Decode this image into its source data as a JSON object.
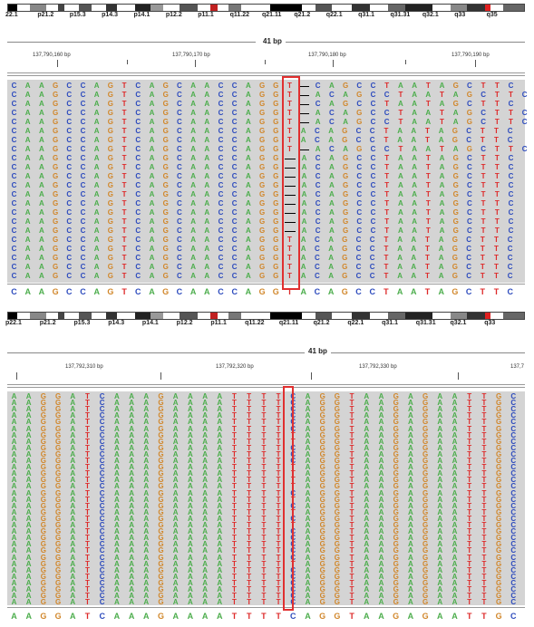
{
  "colors": {
    "A": "#4cad4c",
    "C": "#2d4bbd",
    "G": "#d1872b",
    "T": "#dd2a2a",
    "highlight": "#e03030",
    "read_bg": "#d4d4d4"
  },
  "panel1": {
    "ideogram_labels": [
      "22.1",
      "p21.2",
      "p15.3",
      "p14.3",
      "p14.1",
      "p12.2",
      "p11.1",
      "q11.22",
      "q21.11",
      "q21.2",
      "q22.1",
      "q31.1",
      "q31.31",
      "q32.1",
      "q33",
      "q35"
    ],
    "span": "41 bp",
    "coords": [
      "137,790,160 bp",
      "137,790,170 bp",
      "137,790,180 bp",
      "137,790,190 bp"
    ],
    "reference": "CAAGCCAGTCAGCAACCAGGTACAGCCTAATAGCTTC",
    "reads": [
      "CAAGCCAGTCAGCAACCAGGT-CAGCCTAATAGCTTC",
      "CAAGCCAGTCAGCAACCAGGT-ACAGCCTAATAGCTTC",
      "CAAGCCAGTCAGCAACCAGGT-CAGCCTAATAGCTTC",
      "CAAGCCAGTCAGCAACCAGGT-ACAGCCTAATAGCTTC",
      "CAAGCCAGTCAGCAACCAGGT-ACAGCCTAATAGCTTC",
      "CAAGCCAGTCAGCAACCAGGTACAGCCTAATAGCTTC",
      "CAAGCCAGTCAGCAACCAGGTACAGCCTAATAGCTTC",
      "CAAGCCAGTCAGCAACCAGGT-ACAGCCTAATAGCTTC",
      "CAAGCCAGTCAGCAACCAGG-ACAGCCTAATAGCTTC",
      "CAAGCCAGTCAGCAACCAGG-ACAGCCTAATAGCTTC",
      "CAAGCCAGTCAGCAACCAGG-ACAGCCTAATAGCTTC",
      "CAAGCCAGTCAGCAACCAGG-ACAGCCTAATAGCTTC",
      "CAAGCCAGTCAGCAACCAGG-ACAGCCTAATAGCTTC",
      "CAAGCCAGTCAGCAACCAGG-ACAGCCTAATAGCTTC",
      "CAAGCCAGTCAGCAACCAGG-ACAGCCTAATAGCTTC",
      "CAAGCCAGTCAGCAACCAGG-ACAGCCTAATAGCTTC",
      "CAAGCCAGTCAGCAACCAGG-ACAGCCTAATAGCTTC",
      "CAAGCCAGTCAGCAACCAGGTACAGCCTAATAGCTTC",
      "CAAGCCAGTCAGCAACCAGGTACAGCCTAATAGCTTC",
      "CAAGCCAGTCAGCAACCAGGTACAGCCTAATAGCTTC",
      "CAAGCCAGTCAGCAACCAGGTACAGCCTAATAGCTTC",
      "CAAGCCAGTCAGCAACCAGGTACAGCCTAATAGCTTC"
    ]
  },
  "panel2": {
    "ideogram_labels": [
      "p22.1",
      "p21.2",
      "p15.3",
      "p14.3",
      "p14.1",
      "p12.2",
      "p11.1",
      "q11.22",
      "q21.11",
      "q21.2",
      "q22.1",
      "q31.1",
      "q31.31",
      "q32.1",
      "q33"
    ],
    "span": "41 bp",
    "coords": [
      "137,792,310 bp",
      "137,792,320 bp",
      "137,792,330 bp",
      "137,7"
    ],
    "reference": "AAGGATCAAAGAAAATTTTCAGGTAAGAGAATTGC",
    "reads": [
      "AAGGATCAAAGAAAATTTTCAGGTAAGAGAATTGC",
      "AAGGATCAAAGAAAATTTTCAGGTAAGAGAATTGC",
      "AAGGATCAAAGAAAATTTTCAGGTAAGAGAATTGC",
      "AAGGATCAAAGAAAATTTTCAGGTAAGAGAATTGC",
      "AAGGATCAAAGAAAATTTTCAGGTAAGAGAATTGC",
      "AAGGATCAAAGAAAATTTTCAGGTAAGAGAATTGC",
      "AAGGATCAAAGAAAATTTTTAGGTAAGAGAATTGC",
      "AAGGATCAAAGAAAATTTTTAGGTAAGAGAATTGC",
      "AAGGATCAAAGAAAATTTTCAGGTAAGAGAATTGC",
      "AAGGATCAAAGAAAATTTTCAGGTAAGAGAATTGC",
      "AAGGATCAAAGAAAATTTTCAGGTAAGAGAATTGC",
      "AAGGATCAAAGAAAATTTTTAGGTAAGAGAATTGC",
      "AAGGATCAAAGAAAATTTTTAGGTAAGAGAATTGC",
      "AAGGATCAAAGAAAATTTTTAGGTAAGAGAATTGC",
      "AAGGATCAAAGAAAATTTTTAGGTAAGAGAATTGC",
      "AAGGATCAAAGAAAATTTTCAGGTAAGAGAATTGC",
      "AAGGATCAAAGAAAATTTTTAGGTAAGAGAATTGC",
      "AAGGATCAAAGAAAATTTTCAGGTAAGAGAATTGC",
      "AAGGATCAAAGAAAATTTTTAGGTAAGAGAATTGC",
      "AAGGATCAAAGAAAATTTTCAGGTAAGAGAATTGC",
      "AAGGATCAAAGAAAATTTTTAGGTAAGAGAATTGC",
      "AAGGATCAAAGAAAATTTTCAGGTAAGAGAATTGC",
      "AAGGATCAAAGAAAATTTTCAGGTAAGAGAATTGC",
      "AAGGATCAAAGAAAATTTTCAGGTAAGAGAATTGC",
      "AAGGATCAAAGAAAATTTTCAGGTAAGAGAATTGC",
      "AAGGATCAAAGAAAATTTTCAGGTAAGAGAATTGC",
      "AAGGATCAAAGAAAATTTTTAGGTAAGAGAATTGC",
      "AAGGATCAAAGAAAATTTTCAGGTAAGAGAATTGC",
      "AAGGATCAAAGAAAATTTTCAGGTAAGAGAATTGC",
      "AAGGATCAAAGAAAATTTTCAGGTAAGAGAATTGC",
      "AAGGATCAAAGAAAATTTTCAGGTAAGAGAATTGC",
      "AAGGATCAAAGAAAATTTTCAGGTAAGAGAATTGC",
      "AAGGATCAAAGAAAATTTTCAGGTAAGAGAATTGC"
    ]
  }
}
